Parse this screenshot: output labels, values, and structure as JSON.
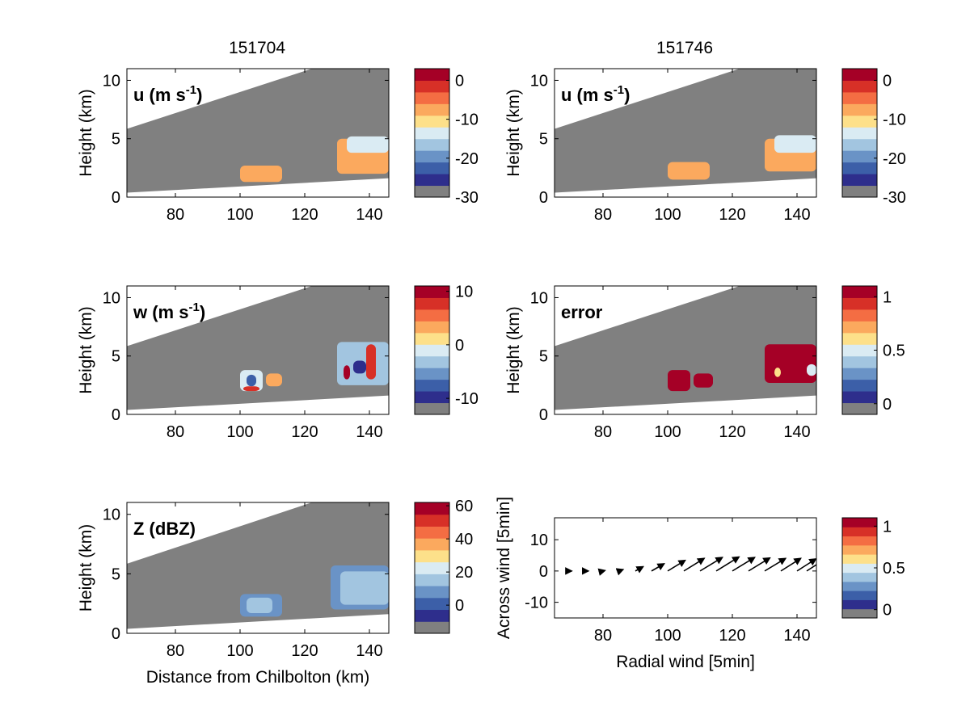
{
  "figure": {
    "title_left": "151704",
    "title_right": "151746"
  },
  "colormap": [
    "#808080",
    "#2e2e8c",
    "#3c5fa8",
    "#6a93c6",
    "#a2c5e0",
    "#daebf3",
    "#fde08a",
    "#fba95e",
    "#f46d43",
    "#d73027",
    "#a50026"
  ],
  "chart_data": [
    {
      "id": "u-151704",
      "type": "heatmap",
      "title": "151704",
      "panel_label": "u (m s",
      "panel_label_sup": "-1",
      "panel_label_tail": ")",
      "xlabel": "",
      "ylabel": "Height (km)",
      "xlim": [
        65,
        146
      ],
      "ylim": [
        0,
        11
      ],
      "xticks": [
        "80",
        "100",
        "120",
        "140"
      ],
      "xtick_values": [
        80,
        100,
        120,
        140
      ],
      "yticks": [
        "0",
        "5",
        "10"
      ],
      "ytick_values": [
        0,
        5,
        10
      ],
      "colorbar": {
        "ticks": [
          "0",
          "-10",
          "-20",
          "-30"
        ],
        "tick_values": [
          0,
          -10,
          -20,
          -30
        ],
        "range": [
          -30,
          3
        ]
      },
      "cells": [
        {
          "x": [
            100,
            113
          ],
          "y": [
            1.3,
            2.7
          ],
          "value": -8
        },
        {
          "x": [
            130,
            146
          ],
          "y": [
            2.0,
            5.0
          ],
          "value": -9
        },
        {
          "x": [
            133,
            146
          ],
          "y": [
            3.8,
            5.2
          ],
          "value": -15
        }
      ]
    },
    {
      "id": "u-151746",
      "type": "heatmap",
      "title": "151746",
      "panel_label": "u (m s",
      "panel_label_sup": "-1",
      "panel_label_tail": ")",
      "xlabel": "",
      "ylabel": "Height (km)",
      "xlim": [
        65,
        146
      ],
      "ylim": [
        0,
        11
      ],
      "xticks": [
        "80",
        "100",
        "120",
        "140"
      ],
      "xtick_values": [
        80,
        100,
        120,
        140
      ],
      "yticks": [
        "0",
        "5",
        "10"
      ],
      "ytick_values": [
        0,
        5,
        10
      ],
      "colorbar": {
        "ticks": [
          "0",
          "-10",
          "-20",
          "-30"
        ],
        "tick_values": [
          0,
          -10,
          -20,
          -30
        ],
        "range": [
          -30,
          3
        ]
      },
      "cells": [
        {
          "x": [
            100,
            113
          ],
          "y": [
            1.5,
            3.0
          ],
          "value": -8
        },
        {
          "x": [
            130,
            146
          ],
          "y": [
            2.2,
            5.0
          ],
          "value": -9
        },
        {
          "x": [
            133,
            146
          ],
          "y": [
            3.8,
            5.3
          ],
          "value": -15
        }
      ]
    },
    {
      "id": "w-151704",
      "type": "heatmap",
      "panel_label": "w (m s",
      "panel_label_sup": "-1",
      "panel_label_tail": ")",
      "xlabel": "",
      "ylabel": "Height (km)",
      "xlim": [
        65,
        146
      ],
      "ylim": [
        0,
        11
      ],
      "xticks": [
        "80",
        "100",
        "120",
        "140"
      ],
      "xtick_values": [
        80,
        100,
        120,
        140
      ],
      "yticks": [
        "0",
        "5",
        "10"
      ],
      "ytick_values": [
        0,
        5,
        10
      ],
      "colorbar": {
        "ticks": [
          "10",
          "0",
          "-10"
        ],
        "tick_values": [
          10,
          0,
          -10
        ],
        "range": [
          -13,
          11
        ]
      },
      "cells": [
        {
          "x": [
            100,
            107
          ],
          "y": [
            2.0,
            3.8
          ],
          "value": 0
        },
        {
          "x": [
            102,
            105
          ],
          "y": [
            2.4,
            3.4
          ],
          "value": -8
        },
        {
          "x": [
            101,
            106
          ],
          "y": [
            2.0,
            2.4
          ],
          "value": 8
        },
        {
          "x": [
            108,
            113
          ],
          "y": [
            2.4,
            3.5
          ],
          "value": 3
        },
        {
          "x": [
            130,
            146
          ],
          "y": [
            2.5,
            6.2
          ],
          "value": -3
        },
        {
          "x": [
            139,
            142
          ],
          "y": [
            3.0,
            6.0
          ],
          "value": 8
        },
        {
          "x": [
            132,
            134
          ],
          "y": [
            3.0,
            4.2
          ],
          "value": 9
        },
        {
          "x": [
            135,
            139
          ],
          "y": [
            3.5,
            4.6
          ],
          "value": -9
        }
      ]
    },
    {
      "id": "error-151746",
      "type": "heatmap",
      "panel_label": "error",
      "xlabel": "",
      "ylabel": "Height (km)",
      "xlim": [
        65,
        146
      ],
      "ylim": [
        0,
        11
      ],
      "xticks": [
        "80",
        "100",
        "120",
        "140"
      ],
      "xtick_values": [
        80,
        100,
        120,
        140
      ],
      "yticks": [
        "0",
        "5",
        "10"
      ],
      "ytick_values": [
        0,
        5,
        10
      ],
      "colorbar": {
        "ticks": [
          "1",
          "0.5",
          "0"
        ],
        "tick_values": [
          1,
          0.5,
          0
        ],
        "range": [
          -0.1,
          1.1
        ]
      },
      "cells": [
        {
          "x": [
            100,
            107
          ],
          "y": [
            2.0,
            3.8
          ],
          "value": 1.05
        },
        {
          "x": [
            108,
            114
          ],
          "y": [
            2.3,
            3.5
          ],
          "value": 1.05
        },
        {
          "x": [
            130,
            146
          ],
          "y": [
            2.7,
            6.0
          ],
          "value": 1.05
        },
        {
          "x": [
            133,
            135
          ],
          "y": [
            3.2,
            4.0
          ],
          "value": 0.6
        },
        {
          "x": [
            143,
            146
          ],
          "y": [
            3.3,
            4.3
          ],
          "value": 0.55
        }
      ]
    },
    {
      "id": "Z-151704",
      "type": "heatmap",
      "panel_label": "Z (dBZ)",
      "xlabel": "Distance from Chilbolton (km)",
      "ylabel": "Height (km)",
      "xlim": [
        65,
        146
      ],
      "ylim": [
        0,
        11
      ],
      "xticks": [
        "80",
        "100",
        "120",
        "140"
      ],
      "xtick_values": [
        80,
        100,
        120,
        140
      ],
      "yticks": [
        "0",
        "5",
        "10"
      ],
      "ytick_values": [
        0,
        5,
        10
      ],
      "colorbar": {
        "ticks": [
          "60",
          "40",
          "20",
          "0"
        ],
        "tick_values": [
          60,
          40,
          20,
          0
        ],
        "range": [
          -17,
          62
        ]
      },
      "cells": [
        {
          "x": [
            100,
            113
          ],
          "y": [
            1.4,
            3.3
          ],
          "value": 8
        },
        {
          "x": [
            102,
            110
          ],
          "y": [
            1.7,
            3.0
          ],
          "value": 16
        },
        {
          "x": [
            128,
            146
          ],
          "y": [
            2.0,
            5.7
          ],
          "value": 10
        },
        {
          "x": [
            131,
            146
          ],
          "y": [
            2.4,
            5.2
          ],
          "value": 17
        }
      ]
    },
    {
      "id": "wind-151746",
      "type": "scatter",
      "xlabel": "Radial wind [5min]",
      "ylabel": "Across wind [5min]",
      "xlim": [
        65,
        146
      ],
      "ylim": [
        -15,
        17
      ],
      "xticks": [
        "80",
        "100",
        "120",
        "140"
      ],
      "xtick_values": [
        80,
        100,
        120,
        140
      ],
      "yticks": [
        "-10",
        "0",
        "10"
      ],
      "ytick_values": [
        -10,
        0,
        10
      ],
      "colorbar": {
        "ticks": [
          "1",
          "0.5",
          "0"
        ],
        "tick_values": [
          1,
          0.5,
          0
        ],
        "range": [
          -0.1,
          1.1
        ]
      },
      "arrows": [
        {
          "x": 70,
          "y": 0,
          "u": 0.2,
          "v": 0.0
        },
        {
          "x": 75,
          "y": 0,
          "u": 0.3,
          "v": 0.0
        },
        {
          "x": 80,
          "y": 0,
          "u": 0.4,
          "v": 0.1
        },
        {
          "x": 85,
          "y": 0,
          "u": 0.8,
          "v": 0.3
        },
        {
          "x": 90,
          "y": 0,
          "u": 1.6,
          "v": 0.9
        },
        {
          "x": 95,
          "y": 0,
          "u": 2.6,
          "v": 1.5
        },
        {
          "x": 100,
          "y": 0,
          "u": 3.6,
          "v": 2.2
        },
        {
          "x": 105,
          "y": 0,
          "u": 4.2,
          "v": 2.6
        },
        {
          "x": 110,
          "y": 0,
          "u": 4.6,
          "v": 2.8
        },
        {
          "x": 115,
          "y": 0,
          "u": 4.7,
          "v": 2.9
        },
        {
          "x": 120,
          "y": 0,
          "u": 4.6,
          "v": 2.8
        },
        {
          "x": 125,
          "y": 0,
          "u": 4.4,
          "v": 2.7
        },
        {
          "x": 130,
          "y": 0,
          "u": 4.3,
          "v": 2.6
        },
        {
          "x": 135,
          "y": 0,
          "u": 4.1,
          "v": 2.6
        },
        {
          "x": 140,
          "y": 0,
          "u": 3.9,
          "v": 2.5
        },
        {
          "x": 143,
          "y": 0,
          "u": 3.7,
          "v": 2.4
        }
      ]
    }
  ]
}
